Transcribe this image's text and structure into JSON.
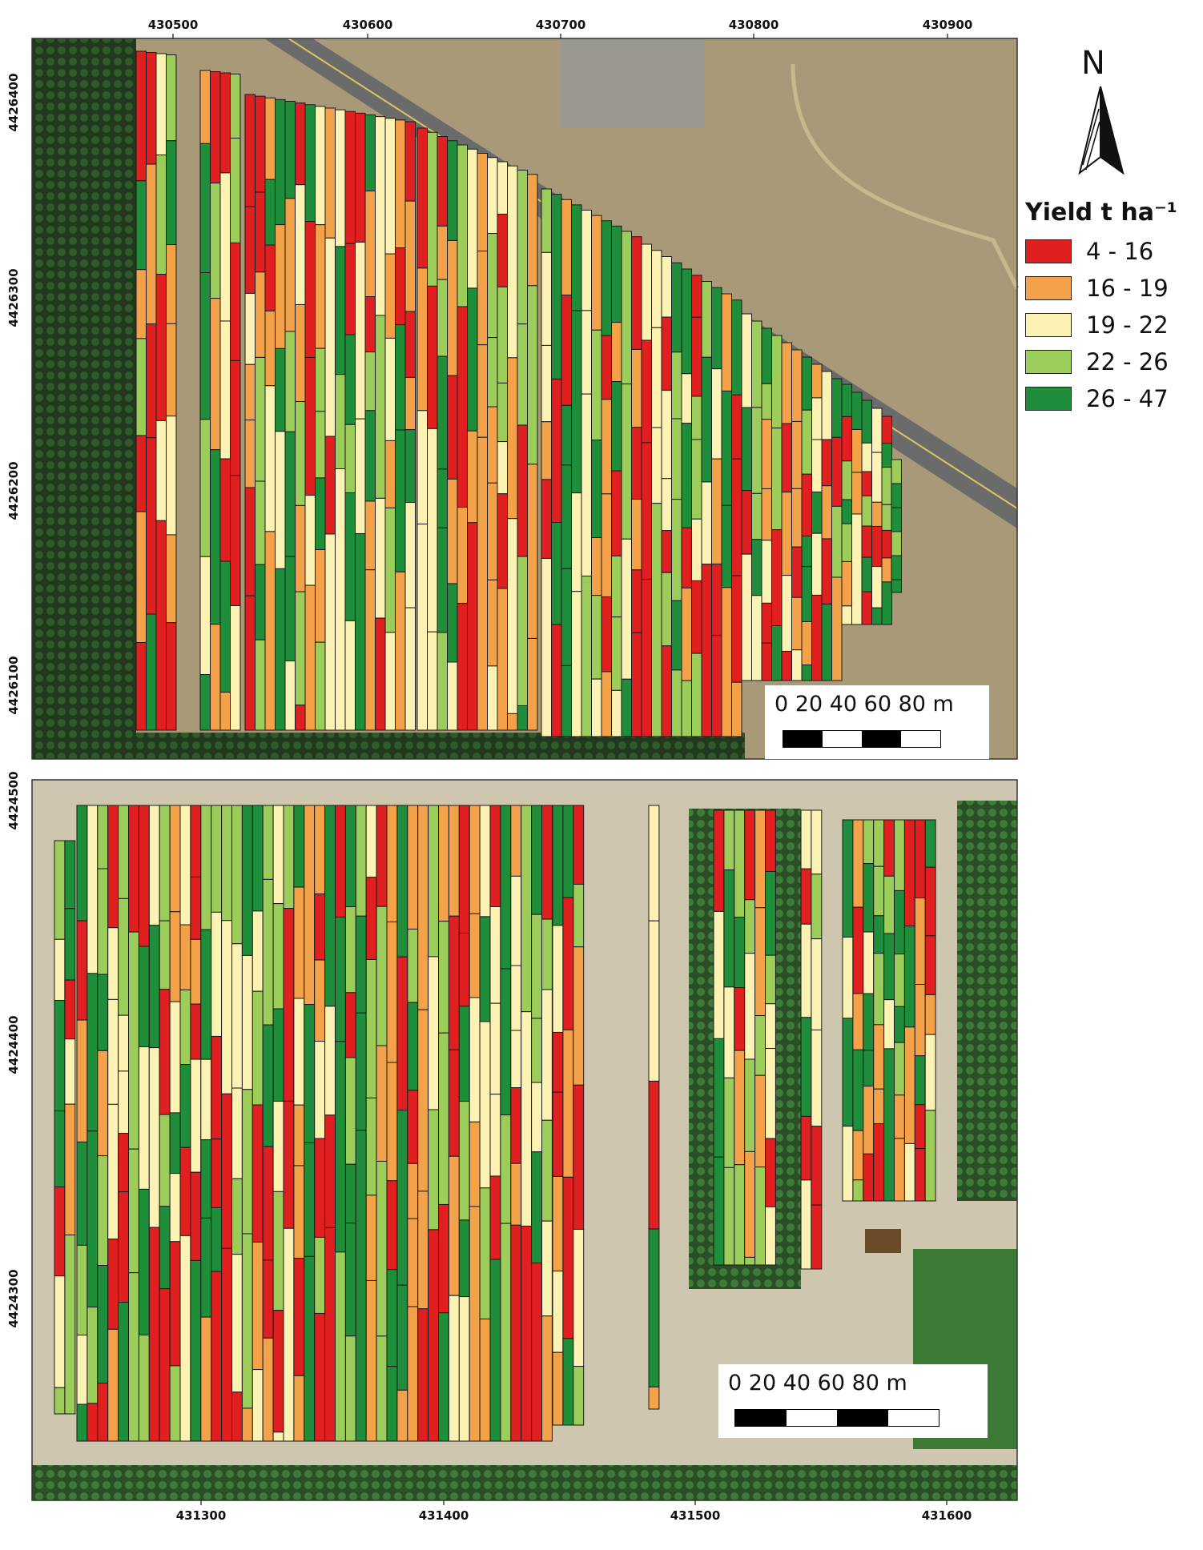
{
  "legend": {
    "title": "Yield t ha⁻¹",
    "classes": [
      {
        "label": "4 - 16",
        "color": "#e02020"
      },
      {
        "label": "16 - 19",
        "color": "#f4a24a"
      },
      {
        "label": "19 - 22",
        "color": "#fbf2b3"
      },
      {
        "label": "22 - 26",
        "color": "#9ccc5a"
      },
      {
        "label": "26 - 47",
        "color": "#1f8e3a"
      }
    ]
  },
  "north_arrow": {
    "label": "N",
    "icon": "north-arrow-icon"
  },
  "top_map": {
    "x_ticks": [
      "430500",
      "430600",
      "430700",
      "430800",
      "430900"
    ],
    "y_ticks": [
      "4426400",
      "4426300",
      "4426200",
      "4426100"
    ],
    "scale_bar": {
      "labels": "0   20   40   60   80 m"
    },
    "imagery_colors": {
      "orchard": "#1f3a20",
      "dry_ground": "#a89a78",
      "road": "#6b6b6b"
    }
  },
  "bottom_map": {
    "x_ticks": [
      "431300",
      "431400",
      "431500",
      "431600"
    ],
    "y_ticks": [
      "4424500",
      "4424400",
      "4424300"
    ],
    "scale_bar": {
      "labels": "0     20     40     60     80 m"
    },
    "imagery_colors": {
      "orchard": "#2d5a2c",
      "ground": "#cfc6b0",
      "grass": "#3d7a35"
    }
  }
}
